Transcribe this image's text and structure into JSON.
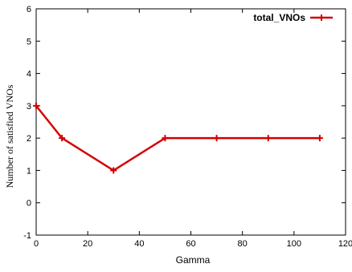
{
  "chart_data": {
    "type": "line",
    "title": "",
    "xlabel": "Gamma",
    "ylabel": "Number of satisfied VNOs",
    "xlim": [
      0,
      120
    ],
    "ylim": [
      -1,
      6
    ],
    "xticks": [
      0,
      20,
      40,
      60,
      80,
      100,
      120
    ],
    "yticks": [
      -1,
      0,
      1,
      2,
      3,
      4,
      5,
      6
    ],
    "grid": false,
    "legend_position": "top-right",
    "series": [
      {
        "name": "total_VNOs",
        "color": "#d40000",
        "marker": "plus",
        "x": [
          0,
          10,
          30,
          50,
          70,
          90,
          110
        ],
        "y": [
          3,
          2,
          1,
          2,
          2,
          2,
          2
        ]
      }
    ]
  }
}
